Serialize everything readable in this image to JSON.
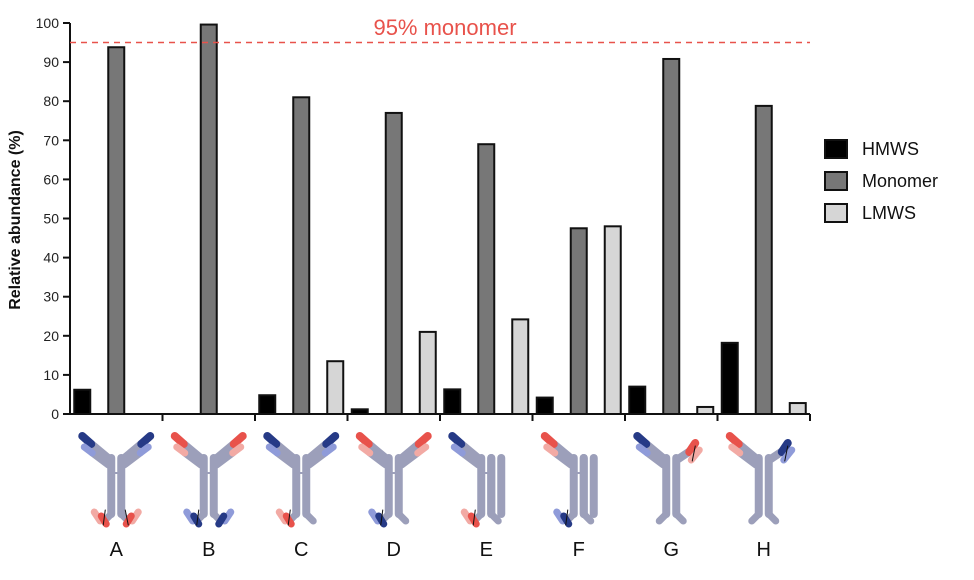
{
  "chart_data": {
    "type": "bar",
    "title": "",
    "xlabel": "",
    "ylabel": "Relative abundance (%)",
    "ylim": [
      0,
      100
    ],
    "yticks": [
      0,
      10,
      20,
      30,
      40,
      50,
      60,
      70,
      80,
      90,
      100
    ],
    "categories": [
      "A",
      "B",
      "C",
      "D",
      "E",
      "F",
      "G",
      "H"
    ],
    "series": [
      {
        "name": "HMWS",
        "color": "#000000",
        "values": [
          6.2,
          0,
          4.8,
          1.2,
          6.3,
          4.2,
          7.0,
          18.2
        ]
      },
      {
        "name": "Monomer",
        "color": "#777777",
        "values": [
          93.8,
          99.6,
          81.0,
          77.0,
          69.0,
          47.5,
          90.8,
          78.8
        ]
      },
      {
        "name": "LMWS",
        "color": "#d6d6d6",
        "values": [
          0,
          0,
          13.5,
          21.0,
          24.2,
          48.0,
          1.8,
          2.8
        ]
      }
    ],
    "reference_line": {
      "value": 95,
      "label": "95% monomer",
      "color": "#e8524b"
    },
    "legend_position": "right",
    "grid": false
  },
  "icons": [
    "antibody-a-icon",
    "antibody-b-icon",
    "antibody-c-icon",
    "antibody-d-icon",
    "antibody-e-icon",
    "antibody-f-icon",
    "antibody-g-icon",
    "antibody-h-icon"
  ],
  "colors": {
    "body": "#9c9fba",
    "dark_blue": "#263a86",
    "light_blue": "#8f9bd9",
    "red": "#e8524b",
    "pink": "#f2aaa4"
  }
}
